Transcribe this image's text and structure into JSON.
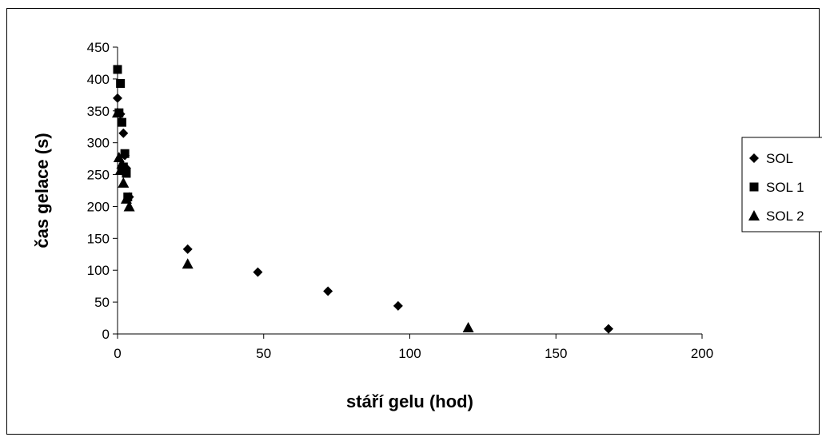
{
  "chart_data": {
    "type": "scatter",
    "title": "",
    "xlabel": "stáří gelu (hod)",
    "ylabel": "čas gelace (s)",
    "xlim": [
      0,
      200
    ],
    "ylim": [
      0,
      450
    ],
    "xticks": [
      0,
      50,
      100,
      150,
      200
    ],
    "yticks": [
      0,
      50,
      100,
      150,
      200,
      250,
      300,
      350,
      400,
      450
    ],
    "grid": false,
    "legend_position": "right",
    "series": [
      {
        "name": "SOL",
        "marker": "diamond",
        "color": "#000000",
        "points": [
          {
            "x": 0,
            "y": 370
          },
          {
            "x": 1,
            "y": 345
          },
          {
            "x": 2,
            "y": 315
          },
          {
            "x": 2.5,
            "y": 280
          },
          {
            "x": 3,
            "y": 260
          },
          {
            "x": 4,
            "y": 215
          },
          {
            "x": 24,
            "y": 133
          },
          {
            "x": 48,
            "y": 97
          },
          {
            "x": 72,
            "y": 67
          },
          {
            "x": 96,
            "y": 44
          },
          {
            "x": 168,
            "y": 8
          }
        ]
      },
      {
        "name": "SOL 1",
        "marker": "square",
        "color": "#000000",
        "points": [
          {
            "x": 0,
            "y": 415
          },
          {
            "x": 1,
            "y": 393
          },
          {
            "x": 0.5,
            "y": 347
          },
          {
            "x": 1.5,
            "y": 332
          },
          {
            "x": 2.5,
            "y": 283
          },
          {
            "x": 2,
            "y": 262
          },
          {
            "x": 3,
            "y": 252
          },
          {
            "x": 3.5,
            "y": 215
          }
        ]
      },
      {
        "name": "SOL 2",
        "marker": "triangle",
        "color": "#000000",
        "points": [
          {
            "x": 0,
            "y": 347
          },
          {
            "x": 0.5,
            "y": 277
          },
          {
            "x": 1,
            "y": 257
          },
          {
            "x": 1.5,
            "y": 267
          },
          {
            "x": 2,
            "y": 237
          },
          {
            "x": 3,
            "y": 212
          },
          {
            "x": 4,
            "y": 200
          },
          {
            "x": 24,
            "y": 110
          },
          {
            "x": 120,
            "y": 10
          }
        ]
      }
    ]
  }
}
